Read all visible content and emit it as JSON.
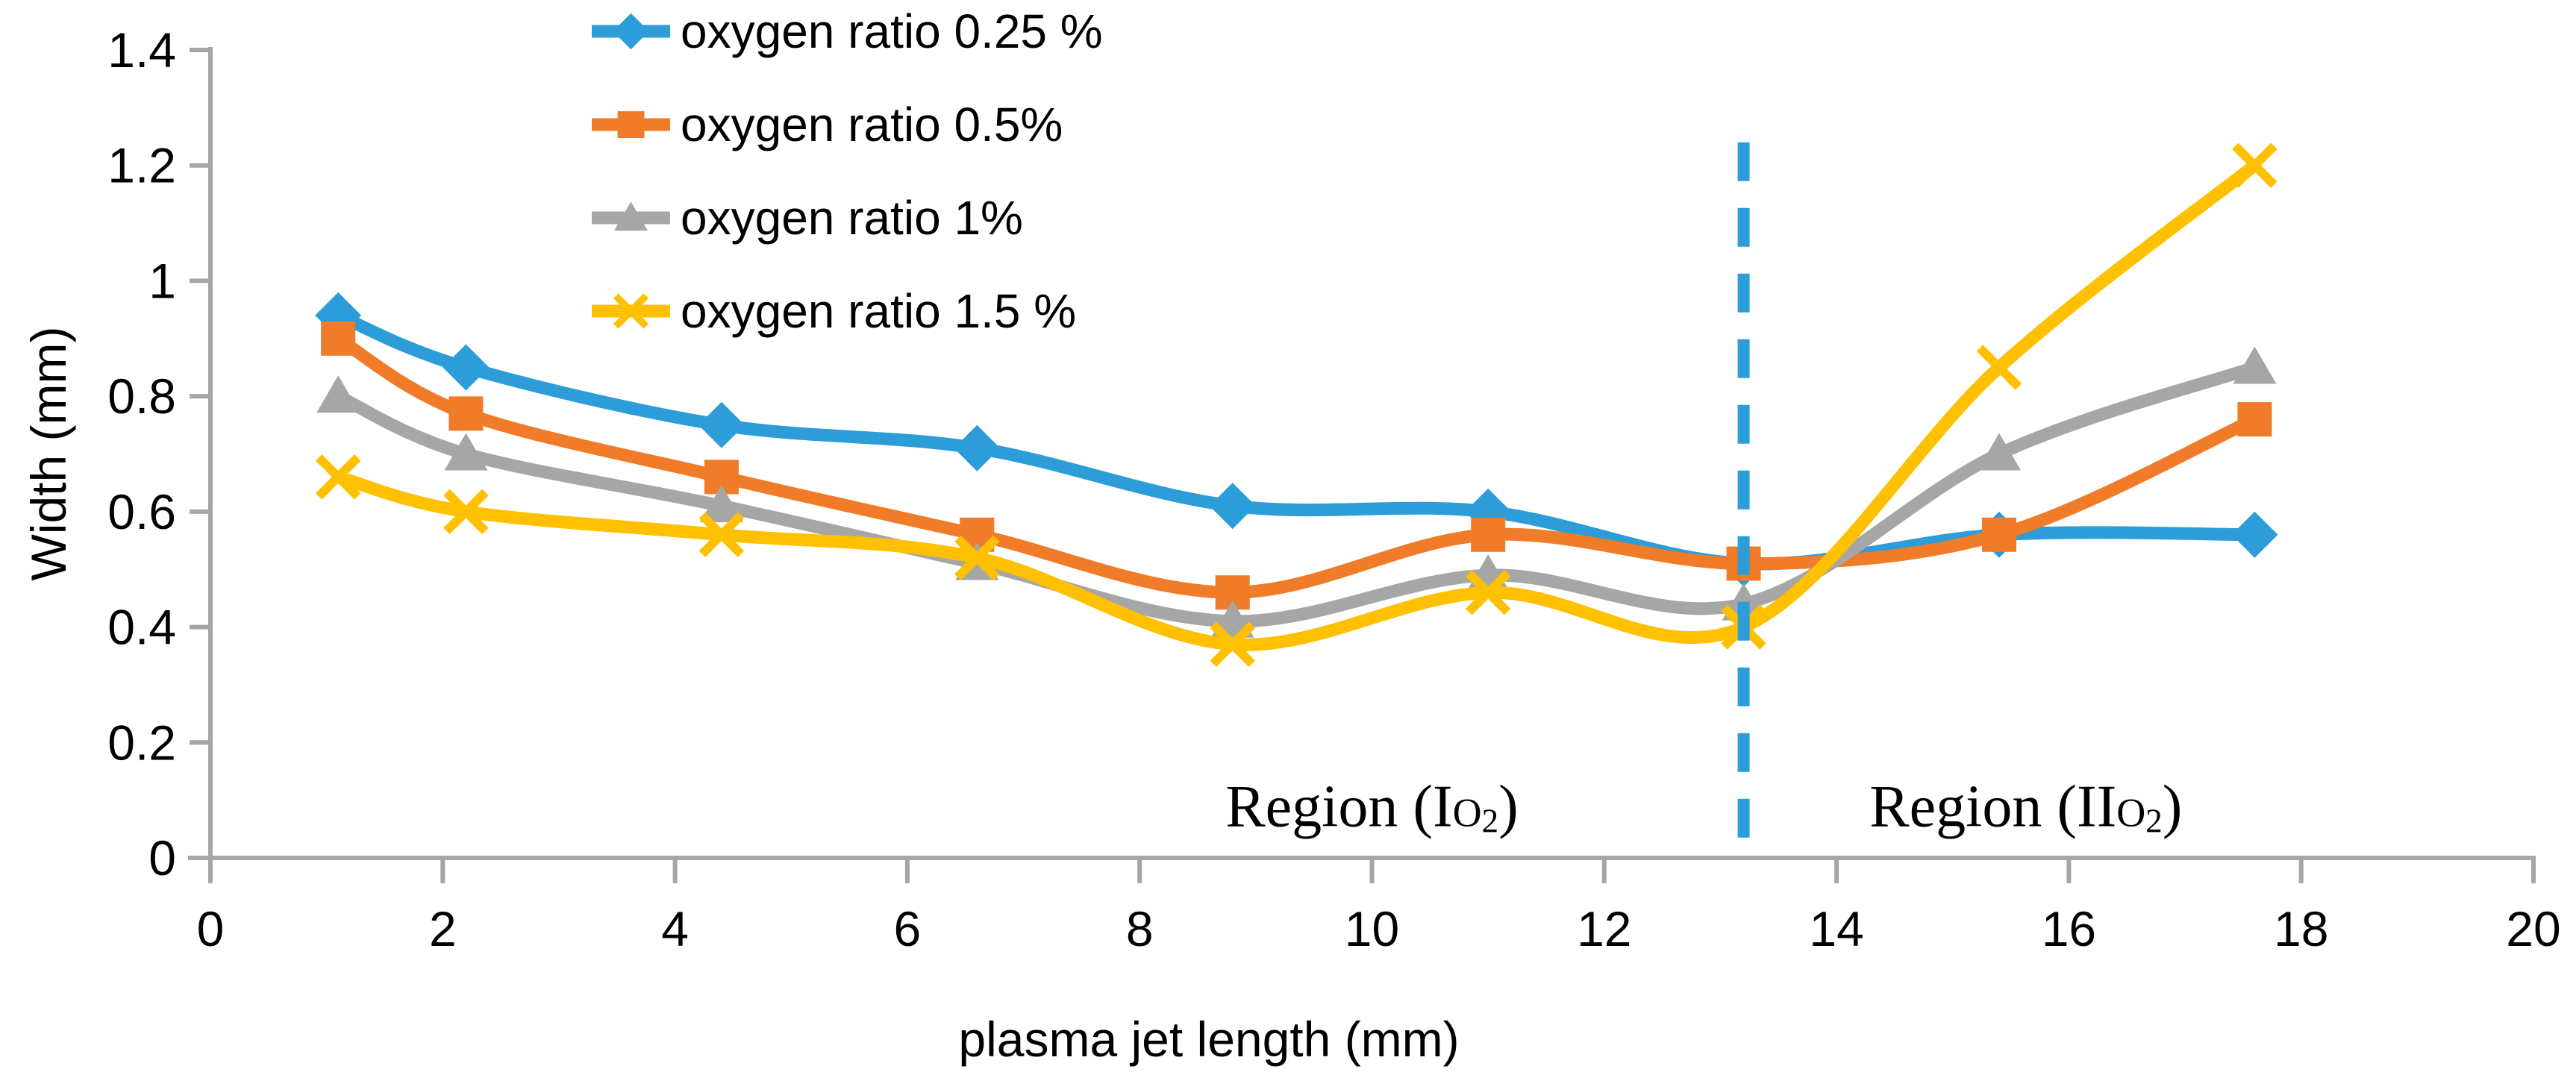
{
  "chart_data": {
    "type": "line",
    "title": "",
    "xlabel": "plasma jet length (mm)",
    "ylabel": "Width (mm)",
    "xlim": [
      0,
      20
    ],
    "ylim": [
      0,
      1.4
    ],
    "grid": false,
    "legend_position": "top-center-vertical",
    "x_ticks": {
      "values": [
        0,
        2,
        4,
        6,
        8,
        10,
        12,
        14,
        16,
        18,
        20
      ],
      "labels": [
        "0",
        "2",
        "4",
        "6",
        "8",
        "10",
        "12",
        "14",
        "16",
        "18",
        "20"
      ]
    },
    "y_ticks": {
      "values": [
        0,
        0.2,
        0.4,
        0.6,
        0.8,
        1.0,
        1.2,
        1.4
      ],
      "labels": [
        "0",
        "0.2",
        "0.4",
        "0.6",
        "0.8",
        "1",
        "1.2",
        "1.4"
      ]
    },
    "x": [
      1.1,
      2.2,
      4.4,
      6.6,
      8.8,
      11,
      13.2,
      15.4,
      17.6
    ],
    "series": [
      {
        "name": "oxygen ratio 0.25 %",
        "color": "#2C9DD8",
        "marker": "diamond",
        "values": [
          0.94,
          0.85,
          0.75,
          0.71,
          0.61,
          0.6,
          0.51,
          0.56,
          0.56
        ]
      },
      {
        "name": "oxygen ratio 0.5%",
        "color": "#F07B28",
        "marker": "square",
        "values": [
          0.9,
          0.77,
          0.66,
          0.56,
          0.46,
          0.56,
          0.51,
          0.56,
          0.76
        ]
      },
      {
        "name": "oxygen ratio 1%",
        "color": "#A6A6A6",
        "marker": "triangle",
        "values": [
          0.8,
          0.7,
          0.61,
          0.51,
          0.41,
          0.49,
          0.44,
          0.7,
          0.85
        ]
      },
      {
        "name": "oxygen ratio 1.5 %",
        "color": "#FFC000",
        "marker": "x",
        "values": [
          0.66,
          0.6,
          0.56,
          0.52,
          0.37,
          0.46,
          0.4,
          0.85,
          1.2
        ]
      }
    ],
    "divider": {
      "x": 13.2,
      "y_min": 0,
      "y_max": 1.24,
      "color": "#2C9DD8",
      "style": "dashed"
    },
    "annotations": [
      {
        "prefix": "Region (I",
        "sub": "O2",
        "suffix": ")",
        "x": 10.0,
        "y": 0.055
      },
      {
        "prefix": "Region (II",
        "sub": "O2",
        "suffix": ")",
        "x": 15.63,
        "y": 0.055
      }
    ],
    "colors": {
      "axis": "#A6A6A6",
      "text": "#000000",
      "background": "#FFFFFF"
    }
  }
}
